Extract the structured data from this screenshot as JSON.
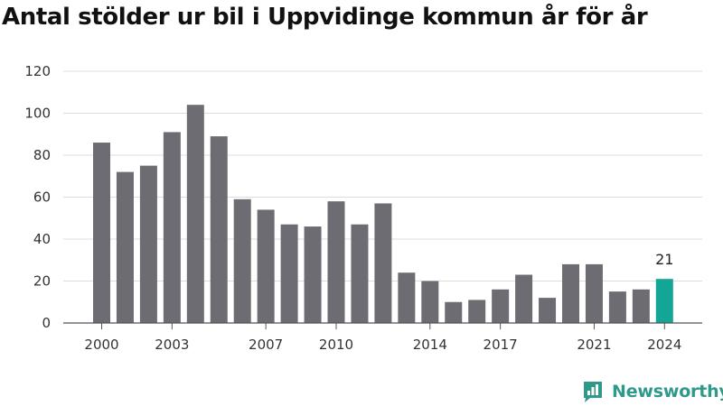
{
  "title": "Antal stölder ur bil i Uppvidinge kommun år för år",
  "brand": {
    "name": "Newsworthy",
    "icon": "newsworthy-logo-icon"
  },
  "colors": {
    "bar": "#6d6c72",
    "highlight": "#13a596",
    "grid": "#dcdcdc",
    "axis": "#555555",
    "brand": "#2f9a8a"
  },
  "chart_data": {
    "type": "bar",
    "title": "Antal stölder ur bil i Uppvidinge kommun år för år",
    "xlabel": "",
    "ylabel": "",
    "categories": [
      2000,
      2001,
      2002,
      2003,
      2004,
      2005,
      2006,
      2007,
      2008,
      2009,
      2010,
      2011,
      2012,
      2013,
      2014,
      2015,
      2016,
      2017,
      2018,
      2019,
      2020,
      2021,
      2022,
      2023,
      2024
    ],
    "values": [
      86,
      72,
      75,
      91,
      104,
      89,
      59,
      54,
      47,
      46,
      58,
      47,
      57,
      24,
      20,
      10,
      11,
      16,
      23,
      12,
      28,
      28,
      15,
      16,
      21
    ],
    "ylim": [
      0,
      120
    ],
    "yticks": [
      0,
      20,
      40,
      60,
      80,
      100,
      120
    ],
    "xtick_labels": [
      "2000",
      "2003",
      "2007",
      "2010",
      "2014",
      "2017",
      "2021",
      "2024"
    ],
    "highlight": {
      "category": 2024,
      "label": "21"
    },
    "grid": true,
    "legend": "none"
  }
}
